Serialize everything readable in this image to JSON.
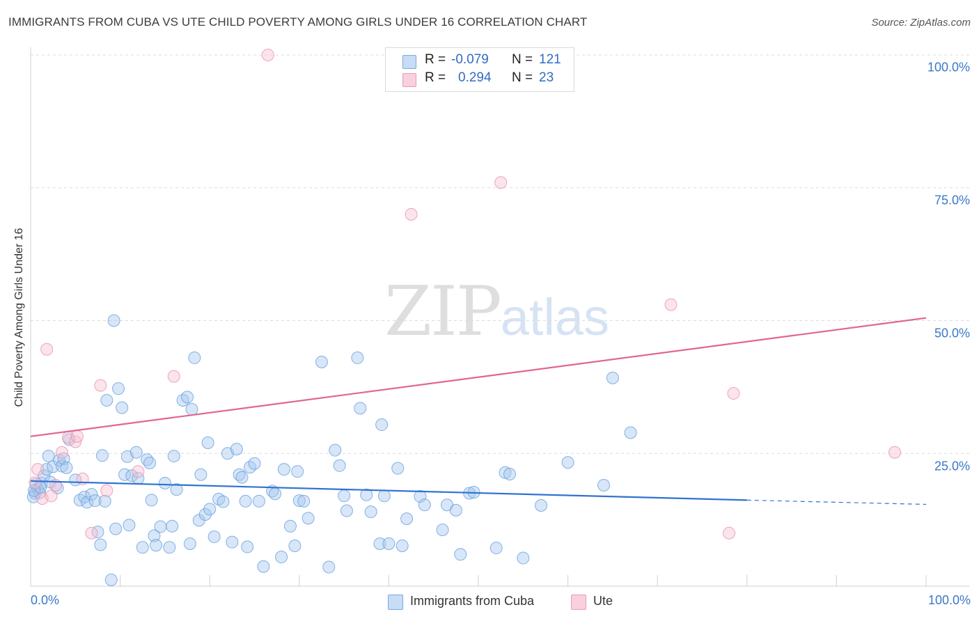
{
  "header": {
    "title": "IMMIGRANTS FROM CUBA VS UTE CHILD POVERTY AMONG GIRLS UNDER 16 CORRELATION CHART",
    "source": "Source: ZipAtlas.com"
  },
  "watermark": {
    "zip": "ZIP",
    "atlas": "atlas"
  },
  "legend": {
    "rows": [
      {
        "r_label": "R =",
        "r_value": "-0.079",
        "n_label": "N =",
        "n_value": "121",
        "color": "#9ec2ec"
      },
      {
        "r_label": "R =",
        "r_value": "0.294",
        "n_label": "N =",
        "n_value": "23",
        "color": "#f4b6c9"
      }
    ]
  },
  "bottom_legend": [
    {
      "label": "Immigrants from Cuba",
      "color": "#9ec2ec"
    },
    {
      "label": "Ute",
      "color": "#f4b6c9"
    }
  ],
  "chart_data": {
    "type": "scatter",
    "ylabel": "Child Poverty Among Girls Under 16",
    "xlabel": "",
    "x_tick_labels": [
      "0.0%",
      "100.0%"
    ],
    "y_tick_labels": [
      "100.0%",
      "75.0%",
      "50.0%",
      "25.0%"
    ],
    "y_tick_values": [
      100,
      75,
      50,
      25
    ],
    "xlim": [
      0,
      100
    ],
    "ylim": [
      0,
      100
    ],
    "grid": true,
    "legend_position": "top-center",
    "series": [
      {
        "name": "Immigrants from Cuba",
        "color": "#5b9be0",
        "fill": "#a9c8ee",
        "trend": {
          "x": [
            0,
            80
          ],
          "y": [
            19.8,
            16.2
          ],
          "dashed_to": [
            100,
            15.4
          ]
        },
        "points": [
          [
            0.5,
            17.5
          ],
          [
            0.6,
            19.2
          ],
          [
            0.8,
            18.3
          ],
          [
            1.0,
            17.6
          ],
          [
            1.2,
            19.4
          ],
          [
            1.5,
            20.8
          ],
          [
            1.8,
            22.0
          ],
          [
            2.0,
            24.5
          ],
          [
            2.2,
            19.6
          ],
          [
            2.5,
            22.5
          ],
          [
            3.0,
            18.5
          ],
          [
            3.2,
            23.7
          ],
          [
            3.5,
            22.6
          ],
          [
            3.7,
            24.0
          ],
          [
            4.0,
            22.3
          ],
          [
            4.3,
            27.6
          ],
          [
            5.0,
            20.0
          ],
          [
            5.5,
            16.2
          ],
          [
            6.0,
            16.8
          ],
          [
            6.3,
            15.8
          ],
          [
            6.8,
            17.3
          ],
          [
            7.2,
            16.1
          ],
          [
            7.5,
            10.2
          ],
          [
            7.8,
            7.8
          ],
          [
            8.0,
            24.6
          ],
          [
            8.3,
            16.0
          ],
          [
            8.5,
            35.0
          ],
          [
            9.0,
            1.2
          ],
          [
            9.3,
            50.0
          ],
          [
            9.5,
            10.8
          ],
          [
            9.8,
            37.2
          ],
          [
            10.2,
            33.6
          ],
          [
            10.5,
            21.0
          ],
          [
            10.8,
            24.4
          ],
          [
            11.0,
            11.5
          ],
          [
            11.3,
            20.8
          ],
          [
            11.8,
            25.2
          ],
          [
            12.0,
            20.3
          ],
          [
            12.5,
            7.3
          ],
          [
            13.0,
            23.8
          ],
          [
            13.3,
            23.2
          ],
          [
            13.5,
            16.2
          ],
          [
            13.8,
            9.5
          ],
          [
            14.0,
            7.7
          ],
          [
            14.5,
            11.2
          ],
          [
            15.0,
            19.4
          ],
          [
            15.5,
            7.3
          ],
          [
            15.8,
            11.3
          ],
          [
            16.0,
            24.5
          ],
          [
            16.3,
            18.2
          ],
          [
            17.0,
            35.0
          ],
          [
            17.5,
            35.6
          ],
          [
            17.8,
            8.0
          ],
          [
            18.0,
            33.3
          ],
          [
            18.3,
            43.0
          ],
          [
            18.8,
            12.4
          ],
          [
            19.0,
            21.0
          ],
          [
            19.5,
            13.5
          ],
          [
            19.8,
            27.0
          ],
          [
            20.0,
            14.5
          ],
          [
            20.5,
            9.3
          ],
          [
            21.0,
            16.4
          ],
          [
            21.5,
            15.9
          ],
          [
            22.0,
            25.0
          ],
          [
            22.5,
            8.3
          ],
          [
            23.0,
            25.8
          ],
          [
            23.3,
            21.0
          ],
          [
            23.6,
            20.5
          ],
          [
            24.0,
            16.0
          ],
          [
            24.2,
            7.4
          ],
          [
            24.5,
            22.4
          ],
          [
            25.0,
            23.1
          ],
          [
            25.5,
            16.0
          ],
          [
            26.0,
            3.7
          ],
          [
            27.0,
            17.9
          ],
          [
            27.3,
            17.4
          ],
          [
            28.0,
            5.5
          ],
          [
            28.3,
            22.0
          ],
          [
            29.0,
            11.3
          ],
          [
            29.5,
            7.6
          ],
          [
            29.8,
            21.6
          ],
          [
            30.0,
            16.1
          ],
          [
            30.5,
            16.0
          ],
          [
            31.0,
            12.8
          ],
          [
            32.5,
            42.2
          ],
          [
            33.3,
            3.6
          ],
          [
            34.0,
            25.6
          ],
          [
            34.5,
            22.7
          ],
          [
            35.0,
            17.0
          ],
          [
            35.3,
            14.2
          ],
          [
            36.5,
            43.0
          ],
          [
            36.8,
            33.5
          ],
          [
            37.5,
            17.2
          ],
          [
            38.0,
            14.0
          ],
          [
            39.0,
            8.0
          ],
          [
            39.2,
            30.4
          ],
          [
            39.5,
            17.0
          ],
          [
            40.0,
            8.0
          ],
          [
            41.0,
            22.2
          ],
          [
            41.5,
            7.6
          ],
          [
            42.0,
            12.7
          ],
          [
            43.5,
            16.9
          ],
          [
            44.0,
            15.3
          ],
          [
            46.0,
            10.6
          ],
          [
            46.5,
            15.3
          ],
          [
            47.5,
            14.3
          ],
          [
            48.0,
            6.0
          ],
          [
            49.0,
            17.5
          ],
          [
            49.5,
            17.7
          ],
          [
            52.0,
            7.2
          ],
          [
            53.0,
            21.4
          ],
          [
            53.5,
            21.1
          ],
          [
            55.0,
            5.3
          ],
          [
            57.0,
            15.2
          ],
          [
            60.0,
            23.3
          ],
          [
            64.0,
            19.0
          ],
          [
            65.0,
            39.2
          ],
          [
            67.0,
            28.9
          ],
          [
            0.3,
            16.8
          ],
          [
            0.4,
            18.0
          ],
          [
            1.1,
            18.6
          ]
        ]
      },
      {
        "name": "Ute",
        "color": "#e888a8",
        "fill": "#f6c3d3",
        "trend": {
          "x": [
            0,
            100
          ],
          "y": [
            28.2,
            50.5
          ]
        },
        "points": [
          [
            0.5,
            19.5
          ],
          [
            0.8,
            22.0
          ],
          [
            1.3,
            16.5
          ],
          [
            1.8,
            44.6
          ],
          [
            2.3,
            17.0
          ],
          [
            2.8,
            19.0
          ],
          [
            3.5,
            25.2
          ],
          [
            4.2,
            28.0
          ],
          [
            5.0,
            27.2
          ],
          [
            5.2,
            28.2
          ],
          [
            5.8,
            20.2
          ],
          [
            6.8,
            10.0
          ],
          [
            7.8,
            37.8
          ],
          [
            8.5,
            18.0
          ],
          [
            12.0,
            21.6
          ],
          [
            16.0,
            39.5
          ],
          [
            26.5,
            100.0
          ],
          [
            42.5,
            70.0
          ],
          [
            52.5,
            76.0
          ],
          [
            71.5,
            53.0
          ],
          [
            78.0,
            10.0
          ],
          [
            78.5,
            36.3
          ],
          [
            96.5,
            25.2
          ]
        ]
      }
    ]
  }
}
